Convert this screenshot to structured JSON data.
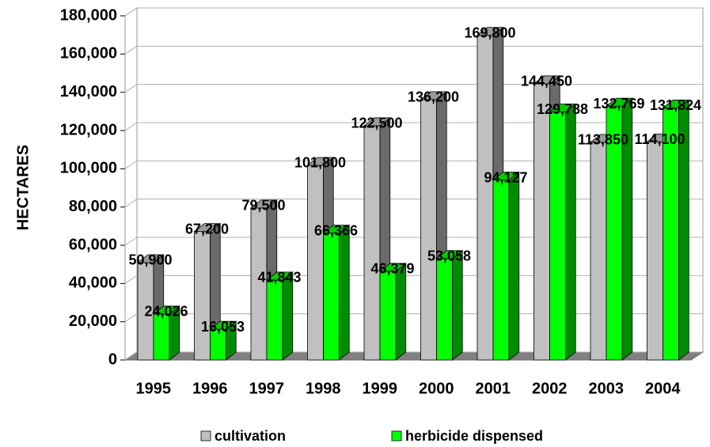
{
  "chart_data": {
    "type": "bar3d",
    "ylabel": "HECTARES",
    "categories": [
      "1995",
      "1996",
      "1997",
      "1998",
      "1999",
      "2000",
      "2001",
      "2002",
      "2003",
      "2004"
    ],
    "series": [
      {
        "name": "cultivation",
        "color": "#c0c0c0",
        "values": [
          50900,
          67200,
          79500,
          101800,
          122500,
          136200,
          169800,
          144450,
          113850,
          114100
        ],
        "value_labels": [
          "50,900",
          "67,200",
          "79,500",
          "101,800",
          "122,500",
          "136,200",
          "169,800",
          "144,450",
          "113,850",
          "114,100"
        ]
      },
      {
        "name": "herbicide dispensed",
        "color": "#00ff00",
        "values": [
          24026,
          16053,
          41843,
          66366,
          46379,
          53058,
          94127,
          129788,
          132769,
          131824
        ],
        "value_labels": [
          "24,026",
          "16,053",
          "41,843",
          "66,366",
          "46,379",
          "53,058",
          "94,127",
          "129,788",
          "132,769",
          "131,824"
        ]
      }
    ],
    "ylim": [
      0,
      180000
    ],
    "yticks": [
      0,
      {
        "value": 20000,
        "label": "20,000"
      },
      {
        "value": 40000,
        "label": "40,000"
      },
      {
        "value": 60000,
        "label": "60,000"
      },
      {
        "value": 80000,
        "label": "80,000"
      },
      {
        "value": 100000,
        "label": "100,000"
      },
      {
        "value": 120000,
        "label": "120,000"
      },
      {
        "value": 140000,
        "label": "140,000"
      },
      {
        "value": 160000,
        "label": "160,000"
      },
      {
        "value": 180000,
        "label": "180,000"
      }
    ],
    "grid": true,
    "legend": "bottom"
  }
}
